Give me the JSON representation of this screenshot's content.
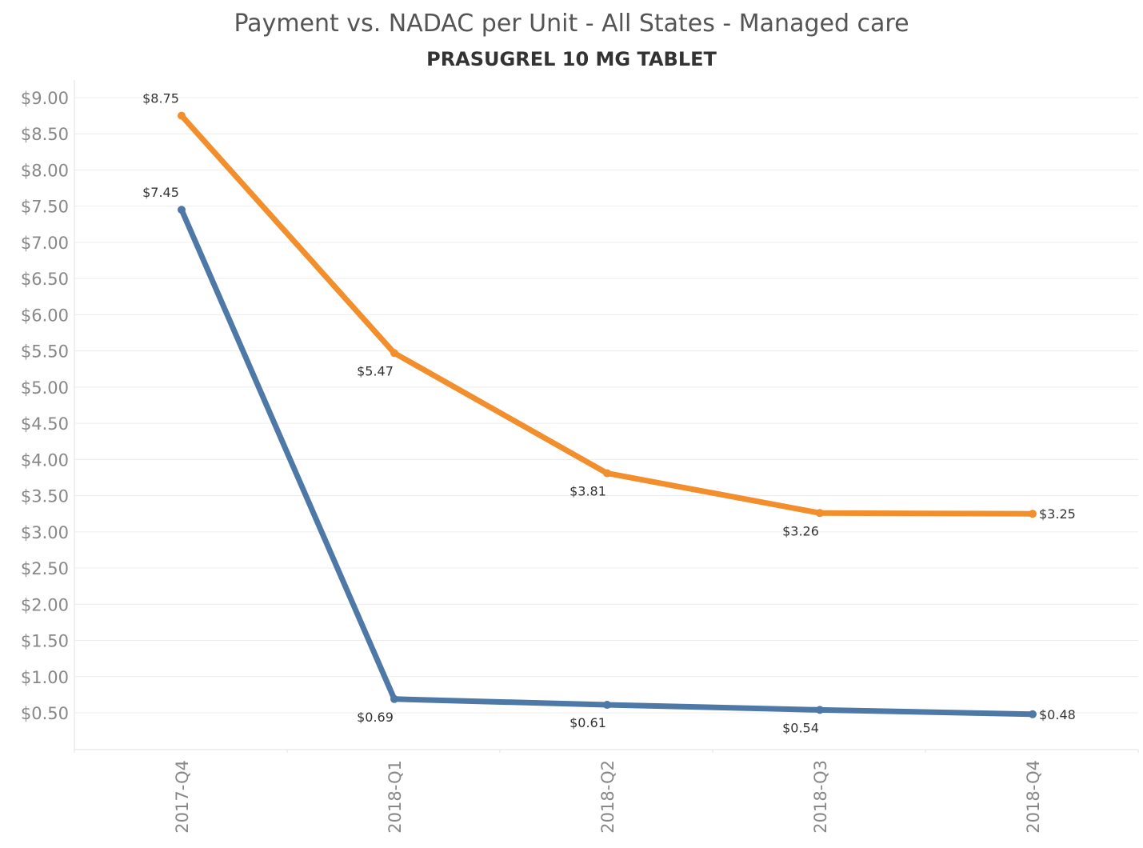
{
  "chart_data": {
    "type": "line",
    "title": "Payment vs. NADAC per Unit - All States - Managed care",
    "subtitle": "PRASUGREL 10 MG TABLET",
    "categories": [
      "2017-Q4",
      "2018-Q1",
      "2018-Q2",
      "2018-Q3",
      "2018-Q4"
    ],
    "series": [
      {
        "color": "#f28e2b",
        "values": [
          8.75,
          5.47,
          3.81,
          3.26,
          3.25
        ],
        "labels": [
          "$8.75",
          "$5.47",
          "$3.81",
          "$3.26",
          "$3.25"
        ]
      },
      {
        "color": "#4e79a7",
        "values": [
          7.45,
          0.69,
          0.61,
          0.54,
          0.48
        ],
        "labels": [
          "$7.45",
          "$0.69",
          "$0.61",
          "$0.54",
          "$0.48"
        ]
      }
    ],
    "y_ticks": [
      "$0.50",
      "$1.00",
      "$1.50",
      "$2.00",
      "$2.50",
      "$3.00",
      "$3.50",
      "$4.00",
      "$4.50",
      "$5.00",
      "$5.50",
      "$6.00",
      "$6.50",
      "$7.00",
      "$7.50",
      "$8.00",
      "$8.50",
      "$9.00"
    ],
    "y_tick_values": [
      0.5,
      1.0,
      1.5,
      2.0,
      2.5,
      3.0,
      3.5,
      4.0,
      4.5,
      5.0,
      5.5,
      6.0,
      6.5,
      7.0,
      7.5,
      8.0,
      8.5,
      9.0
    ],
    "xlabel": "",
    "ylabel": "",
    "ylim": [
      0.0,
      9.25
    ],
    "grid": true
  }
}
